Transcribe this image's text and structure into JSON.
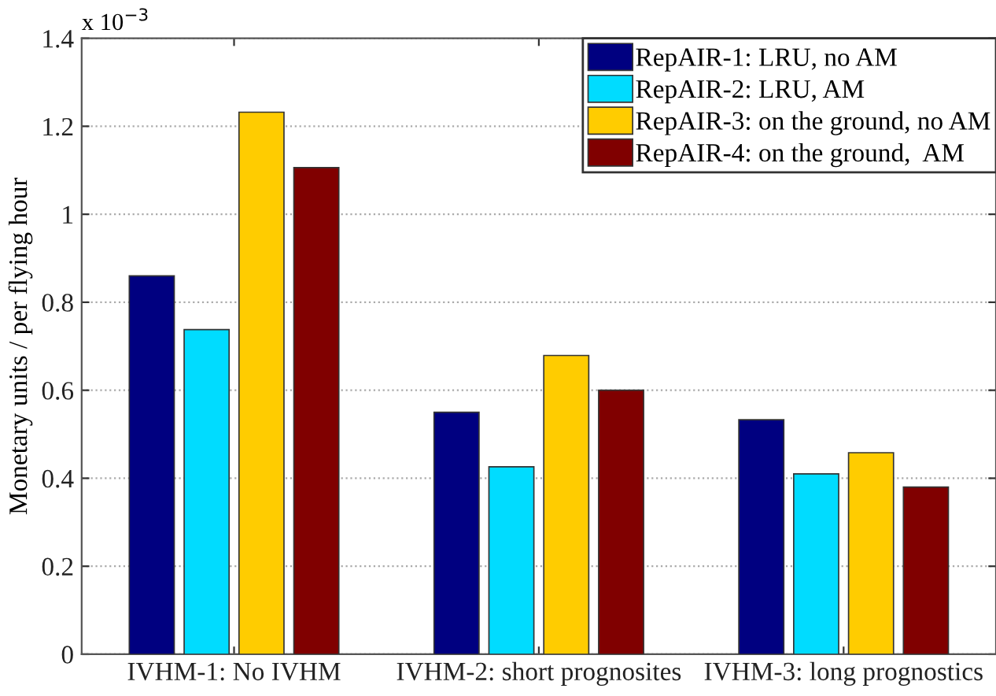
{
  "chart_data": {
    "type": "bar",
    "ylabel": "Monetary units / per flying hour",
    "categories": [
      "IVHM-1: No IVHM",
      "IVHM-2: short prognosites",
      "IVHM-3: long prognostics"
    ],
    "series": [
      {
        "name": "RepAIR-1: LRU, no AM",
        "color": "#000080",
        "values": [
          0.86,
          0.55,
          0.533
        ]
      },
      {
        "name": "RepAIR-2: LRU, AM",
        "color": "#00dcff",
        "values": [
          0.738,
          0.426,
          0.41
        ]
      },
      {
        "name": "RepAIR-3: on the ground, no AM",
        "color": "#ffcc00",
        "values": [
          1.232,
          0.679,
          0.458
        ]
      },
      {
        "name": "RepAIR-4: on the ground,  AM",
        "color": "#800000",
        "values": [
          1.106,
          0.6,
          0.38
        ]
      }
    ],
    "ylim": [
      0,
      1.4
    ],
    "yticks": [
      0,
      0.2,
      0.4,
      0.6,
      0.8,
      1,
      1.2,
      1.4
    ],
    "annotations": [
      "x 10$^{−3}$"
    ],
    "grid": "y",
    "legend": "top right"
  }
}
